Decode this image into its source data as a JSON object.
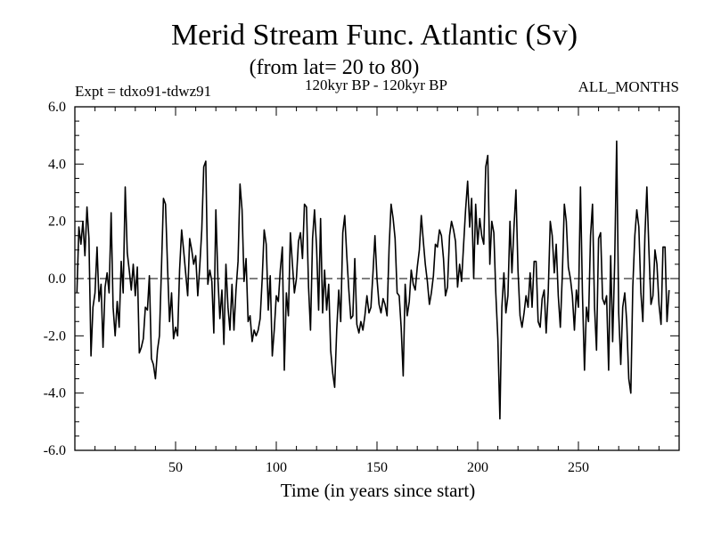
{
  "chart_data": {
    "type": "line",
    "title": "Merid Stream Func. Atlantic (Sv)",
    "subtitle": "(from lat= 20 to 80)",
    "experiment_label": "Expt = tdxo91-tdwz91",
    "period_label": "120kyr BP - 120kyr BP",
    "months_label": "ALL_MONTHS",
    "xlabel": "Time (in years since start)",
    "ylabel": "",
    "xlim": [
      0,
      300
    ],
    "ylim": [
      -6,
      6
    ],
    "x_ticks": [
      50,
      100,
      150,
      200,
      250
    ],
    "x_tick_labels": [
      "50",
      "100",
      "150",
      "200",
      "250"
    ],
    "y_ticks": [
      -6,
      -4,
      -2,
      0,
      2,
      4,
      6
    ],
    "y_tick_labels": [
      "-6.0",
      "-4.0",
      "-2.0",
      "0.0",
      "2.0",
      "4.0",
      "6.0"
    ],
    "zero_line": true,
    "series": [
      {
        "name": "Merid Stream Func. Atlantic",
        "x_start": 1,
        "x_step": 1,
        "values": [
          -0.5,
          1.8,
          1.2,
          2.0,
          0.8,
          2.5,
          1.4,
          -2.7,
          -1.0,
          -0.5,
          1.1,
          -0.8,
          -0.2,
          -2.4,
          -0.3,
          0.2,
          -0.5,
          2.3,
          -1.0,
          -2.0,
          -0.8,
          -1.7,
          0.6,
          -0.5,
          3.2,
          0.9,
          0.3,
          -0.4,
          0.5,
          -0.6,
          0.4,
          -2.6,
          -2.4,
          -2.1,
          -1.0,
          -1.1,
          0.1,
          -2.8,
          -3.0,
          -3.5,
          -2.5,
          -2.0,
          0.4,
          2.8,
          2.6,
          0.4,
          -1.5,
          -0.5,
          -2.1,
          -1.7,
          -2.0,
          0.3,
          1.7,
          1.0,
          0.2,
          -0.6,
          1.4,
          1.0,
          0.5,
          0.8,
          -0.6,
          0.4,
          1.7,
          3.9,
          4.1,
          -0.2,
          0.3,
          -0.1,
          -1.9,
          2.4,
          0.0,
          -1.4,
          -0.4,
          -2.3,
          0.5,
          -1.0,
          -1.8,
          -0.2,
          -1.8,
          -0.4,
          0.6,
          3.3,
          2.4,
          -0.1,
          0.7,
          -1.5,
          -1.3,
          -2.2,
          -1.8,
          -2.0,
          -1.8,
          -1.4,
          0.0,
          1.7,
          1.2,
          -1.1,
          0.1,
          -2.7,
          -1.8,
          -0.6,
          -0.8,
          0.3,
          1.1,
          -3.2,
          -0.5,
          -1.3,
          1.6,
          0.5,
          -0.5,
          0.0,
          1.3,
          1.6,
          0.7,
          2.6,
          2.5,
          -0.3,
          -1.8,
          1.4,
          2.4,
          1.1,
          -1.1,
          2.1,
          -1.2,
          0.3,
          -1.1,
          -0.2,
          -2.5,
          -3.3,
          -3.8,
          -1.8,
          -0.4,
          -1.5,
          1.6,
          2.2,
          0.8,
          -0.4,
          -1.4,
          -1.3,
          0.7,
          -1.6,
          -1.9,
          -1.5,
          -1.8,
          -1.3,
          -0.6,
          -1.2,
          -1.0,
          0.2,
          1.5,
          0.0,
          -0.9,
          -1.2,
          -0.7,
          -0.9,
          -1.3,
          1.1,
          2.6,
          2.1,
          1.4,
          -0.5,
          -0.6,
          -1.7,
          -3.4,
          -0.2,
          -1.3,
          -0.8,
          0.3,
          -0.2,
          -0.4,
          0.4,
          1.0,
          2.2,
          1.3,
          0.5,
          -0.1,
          -0.9,
          -0.5,
          0.1,
          1.2,
          1.1,
          1.7,
          1.5,
          0.7,
          -0.6,
          -0.3,
          1.5,
          2.0,
          1.7,
          1.3,
          -0.3,
          0.5,
          -0.1,
          1.2,
          2.4,
          3.4,
          1.8,
          2.8,
          0.0,
          2.6,
          1.2,
          2.1,
          1.5,
          1.2,
          3.9,
          4.3,
          0.5,
          2.0,
          1.6,
          -0.5,
          -2.1,
          -4.9,
          -1.0,
          0.2,
          -1.2,
          -0.6,
          2.0,
          0.2,
          1.8,
          3.1,
          0.3,
          -1.3,
          -1.7,
          -1.2,
          -0.6,
          -1.0,
          0.2,
          -1.0,
          0.6,
          0.6,
          -1.5,
          -1.7,
          -0.7,
          -0.4,
          -1.9,
          -0.5,
          2.0,
          1.5,
          0.2,
          1.2,
          -0.6,
          -1.7,
          0.1,
          2.6,
          2.0,
          0.4,
          0.0,
          -0.6,
          -1.8,
          -0.4,
          -1.0,
          3.2,
          -0.5,
          -3.2,
          -1.0,
          -1.5,
          1.5,
          2.6,
          -1.0,
          -2.5,
          1.4,
          1.6,
          -0.7,
          -0.9,
          -0.6,
          -3.2,
          0.8,
          -2.2,
          0.6,
          4.8,
          -1.2,
          -3.0,
          -1.0,
          -0.5,
          -1.5,
          -3.5,
          -4.0,
          -0.3,
          1.5,
          2.4,
          1.8,
          -0.5,
          -1.5,
          1.5,
          3.2,
          1.0,
          -0.9,
          -0.6,
          1.0,
          0.5,
          -0.9,
          -1.6,
          1.1,
          1.1,
          -1.5,
          -0.4
        ]
      }
    ]
  }
}
